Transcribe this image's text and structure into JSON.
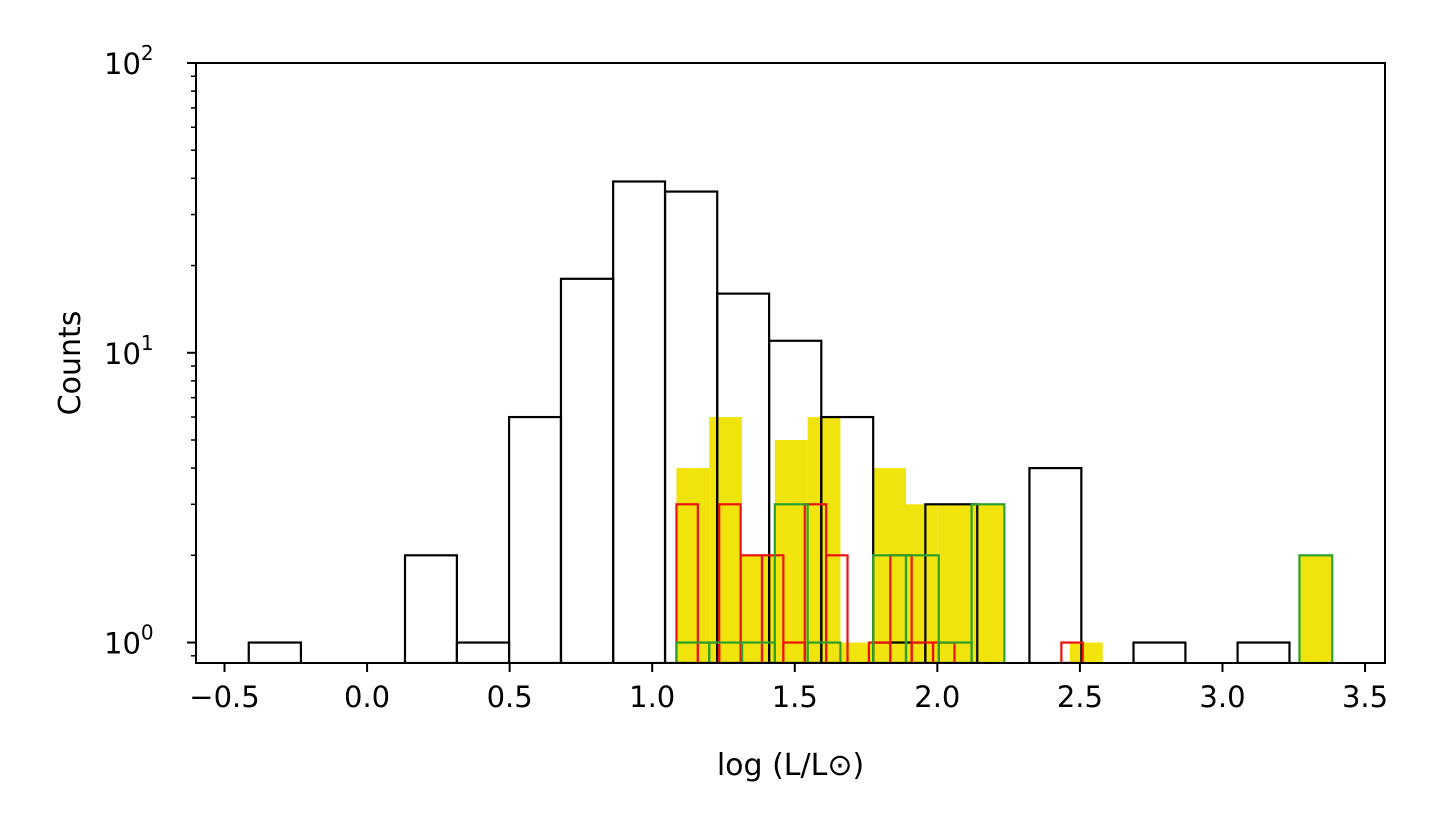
{
  "chart_data": {
    "type": "histogram",
    "xlabel": "log (L/L⊙)",
    "ylabel": "Counts",
    "yscale": "log",
    "xlim": [
      -0.6,
      3.57
    ],
    "ylim": [
      0.85,
      100
    ],
    "xticks": [
      {
        "value": -0.5,
        "label": "−0.5"
      },
      {
        "value": 0.0,
        "label": "0.0"
      },
      {
        "value": 0.5,
        "label": "0.5"
      },
      {
        "value": 1.0,
        "label": "1.0"
      },
      {
        "value": 1.5,
        "label": "1.5"
      },
      {
        "value": 2.0,
        "label": "2.0"
      },
      {
        "value": 2.5,
        "label": "2.5"
      },
      {
        "value": 3.0,
        "label": "3.0"
      },
      {
        "value": 3.5,
        "label": "3.5"
      }
    ],
    "yticks": [
      {
        "value": 1,
        "base": "10",
        "exp": "0"
      },
      {
        "value": 10,
        "base": "10",
        "exp": "1"
      },
      {
        "value": 100,
        "base": "10",
        "exp": "2"
      }
    ],
    "series": [
      {
        "style": "step",
        "color": "#000000",
        "bin_edges": [
          -0.415,
          -0.232,
          -0.05,
          0.133,
          0.315,
          0.498,
          0.68,
          0.863,
          1.045,
          1.228,
          1.41,
          1.593,
          1.775,
          1.958,
          2.14,
          2.323,
          2.505,
          2.688,
          2.87,
          3.053,
          3.235
        ],
        "counts": [
          1,
          0,
          0,
          2,
          1,
          6,
          18,
          39,
          36,
          16,
          11,
          6,
          1,
          3,
          0,
          4,
          0,
          1,
          0,
          1
        ]
      },
      {
        "style": "filled",
        "color": "#f0e40c",
        "bin_edges": [
          1.085,
          1.2,
          1.315,
          1.43,
          1.545,
          1.66,
          1.775,
          1.89,
          2.005,
          2.12,
          2.235,
          2.35,
          2.465,
          2.58,
          2.695,
          2.81,
          2.925,
          3.04,
          3.155,
          3.27,
          3.385
        ],
        "counts": [
          4,
          6,
          2,
          5,
          6,
          1,
          4,
          3,
          3,
          3,
          0,
          0,
          1,
          0,
          0,
          0,
          0,
          0,
          0,
          2
        ]
      },
      {
        "style": "step",
        "color": "#ee1111",
        "bin_edges": [
          1.085,
          1.16,
          1.235,
          1.31,
          1.385,
          1.46,
          1.535,
          1.61,
          1.685,
          1.76,
          1.835,
          1.91,
          1.985,
          2.06,
          2.135,
          2.21,
          2.285,
          2.36,
          2.435,
          2.51
        ],
        "counts": [
          3,
          1,
          3,
          2,
          2,
          1,
          3,
          2,
          0,
          1,
          2,
          1,
          1,
          0,
          0,
          0,
          0,
          0,
          1
        ]
      },
      {
        "style": "step",
        "color": "#2ca02c",
        "bin_edges": [
          1.085,
          1.2,
          1.315,
          1.43,
          1.545,
          1.66,
          1.775,
          1.89,
          2.005,
          2.12,
          2.235,
          2.35,
          2.465,
          2.58,
          2.695,
          2.81,
          2.925,
          3.04,
          3.155,
          3.27,
          3.385
        ],
        "counts": [
          1,
          1,
          1,
          3,
          1,
          0,
          2,
          2,
          1,
          3,
          0,
          0,
          0,
          0,
          0,
          0,
          0,
          0,
          0,
          2
        ]
      }
    ]
  }
}
